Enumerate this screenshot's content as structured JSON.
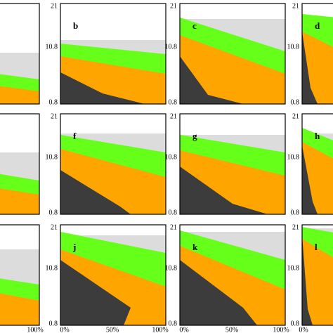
{
  "panels": [
    "b",
    "c",
    "d",
    "f",
    "g",
    "h",
    "j",
    "k",
    "l"
  ],
  "yticks": [
    "21",
    "10.8",
    "0.8"
  ],
  "xticks": [
    "100%",
    "0%",
    "50%",
    "100%",
    "0%",
    "50%",
    "100%",
    "0%"
  ]
}
